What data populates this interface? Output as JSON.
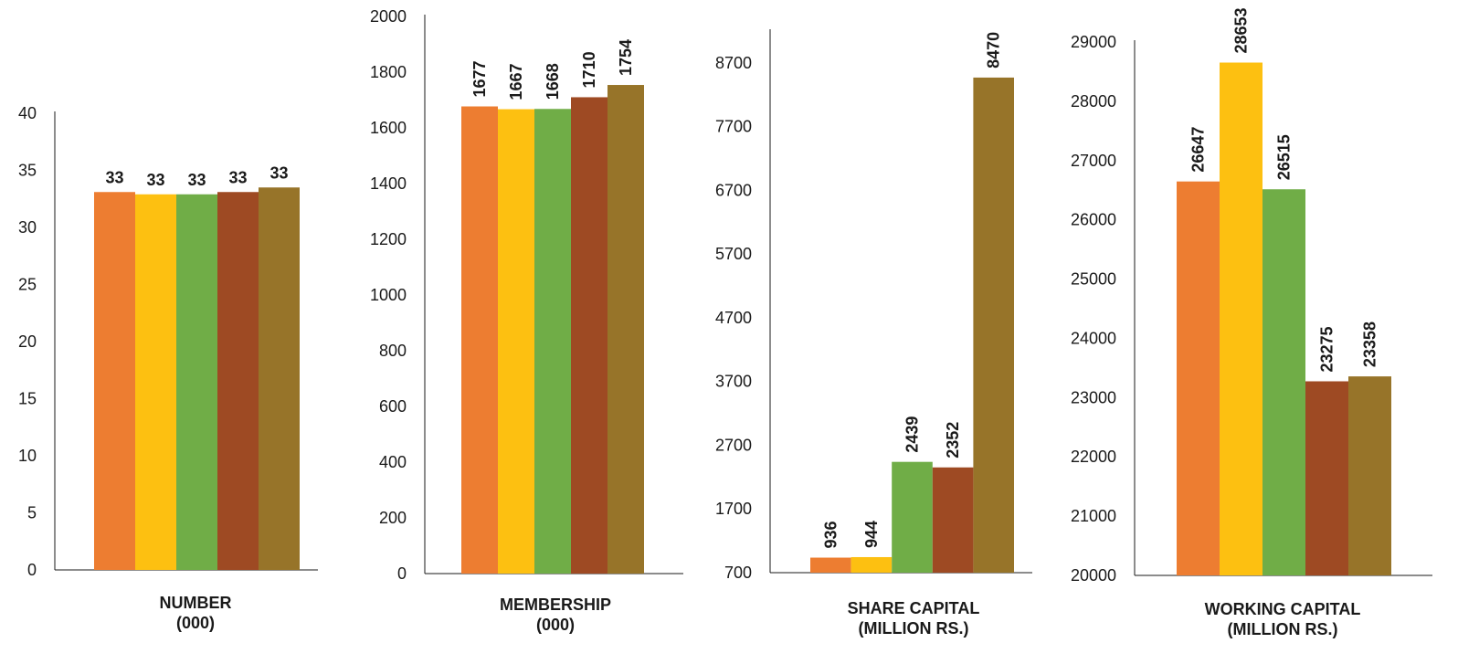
{
  "colors": [
    "#ED7D31",
    "#FDC011",
    "#70AD47",
    "#9E4A23",
    "#977429"
  ],
  "chart_data": [
    {
      "type": "bar",
      "title": "",
      "xlabel": "NUMBER\n(000)",
      "ylabel": "",
      "ylim": [
        0,
        40
      ],
      "yticks": [
        0,
        5,
        10,
        15,
        20,
        25,
        30,
        35,
        40
      ],
      "values": [
        33.1,
        32.9,
        32.9,
        33.1,
        33.5
      ],
      "data_labels": [
        "33",
        "33",
        "33",
        "33",
        "33"
      ],
      "label_rotation": 0,
      "grid": false,
      "legend": "none"
    },
    {
      "type": "bar",
      "title": "",
      "xlabel": "MEMBERSHIP\n(000)",
      "ylabel": "",
      "ylim": [
        0,
        2000
      ],
      "yticks": [
        0,
        200,
        400,
        600,
        800,
        1000,
        1200,
        1400,
        1600,
        1800,
        2000
      ],
      "values": [
        1677,
        1667,
        1668,
        1710,
        1754
      ],
      "data_labels": [
        "1677",
        "1667",
        "1668",
        "1710",
        "1754"
      ],
      "label_rotation": -90,
      "grid": false,
      "legend": "none"
    },
    {
      "type": "bar",
      "title": "",
      "xlabel": "SHARE CAPITAL\n(MILLION RS.)",
      "ylabel": "",
      "ylim": [
        700,
        9200
      ],
      "yticks": [
        700,
        1700,
        2700,
        3700,
        4700,
        5700,
        6700,
        7700,
        8700
      ],
      "values": [
        936,
        944,
        2439,
        2352,
        8470
      ],
      "data_labels": [
        "936",
        "944",
        "2439",
        "2352",
        "8470"
      ],
      "label_rotation": -90,
      "grid": false,
      "legend": "none"
    },
    {
      "type": "bar",
      "title": "",
      "xlabel": "WORKING CAPITAL\n(MILLION RS.)",
      "ylabel": "",
      "ylim": [
        20000,
        29000
      ],
      "yticks": [
        20000,
        21000,
        22000,
        23000,
        24000,
        25000,
        26000,
        27000,
        28000,
        29000
      ],
      "values": [
        26647,
        28653,
        26515,
        23275,
        23358
      ],
      "data_labels": [
        "26647",
        "28653",
        "26515",
        "23275",
        "23358"
      ],
      "label_rotation": -90,
      "grid": false,
      "legend": "none"
    }
  ]
}
